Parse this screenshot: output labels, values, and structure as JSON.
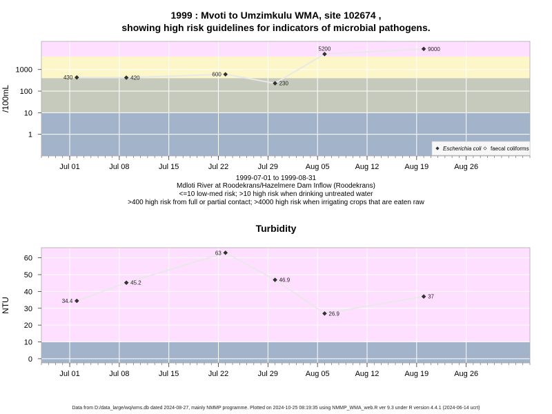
{
  "header": {
    "title_line1": "1999 : Mvoti to Umzimkulu WMA, site 102674 ,",
    "title_line2": "showing high risk guidelines for indicators of microbial pathogens."
  },
  "captions": {
    "line1": "1999-07-01 to 1999-08-31",
    "line2": "Mdloti River at Roodekrans/Hazelmere Dam Inflow (Roodekrans)",
    "line3": "<=10 low-med risk; >10 high risk when drinking untreated water",
    "line4": ">400 high risk from full or partial contact; >4000 high risk when irrigating crops that are eaten raw"
  },
  "footer": {
    "text": "Data from D:/data_large/wq/wms.db dated 2024-08-27, mainly NMMP programme. Plotted on 2024-10-25 08:19:35 using NMMP_WMA_web.R ver 9.3 under R version 4.4.1 (2024-06-14 ucrt)"
  },
  "colors": {
    "band_pink": "#ffdfff",
    "band_yellow": "#fcf6c8",
    "band_green": "#c5cabd",
    "band_blue": "#a3b3c9",
    "grid": "#ffffff",
    "line": "#e8e8e8",
    "point": "#333333"
  },
  "chart_data": [
    {
      "type": "line",
      "title": "",
      "xlabel": "",
      "ylabel": "/100mL",
      "y_scale": "log10",
      "ylim": [
        0.1,
        20000
      ],
      "xlim": [
        "1999-06-27",
        "1999-09-04"
      ],
      "x_ticks": [
        "Jul 01",
        "Jul 08",
        "Jul 15",
        "Jul 22",
        "Jul 29",
        "Aug 05",
        "Aug 12",
        "Aug 19",
        "Aug 26"
      ],
      "x_tick_dates": [
        "1999-07-01",
        "1999-07-08",
        "1999-07-15",
        "1999-07-22",
        "1999-07-29",
        "1999-08-05",
        "1999-08-12",
        "1999-08-19",
        "1999-08-26"
      ],
      "y_ticks": [
        "1",
        "10",
        "100",
        "1000"
      ],
      "y_tick_values": [
        1,
        10,
        100,
        1000
      ],
      "bands": [
        {
          "from": 0.1,
          "to": 10,
          "color_key": "band_blue"
        },
        {
          "from": 10,
          "to": 400,
          "color_key": "band_green"
        },
        {
          "from": 400,
          "to": 4000,
          "color_key": "band_yellow"
        },
        {
          "from": 4000,
          "to": 20000,
          "color_key": "band_pink"
        }
      ],
      "series": [
        {
          "name": "Escherichia coli",
          "x": [
            "1999-07-02",
            "1999-07-09",
            "1999-07-23",
            "1999-07-30",
            "1999-08-06",
            "1999-08-20"
          ],
          "values": [
            430,
            420,
            600,
            230,
            5200,
            9000
          ],
          "labels": [
            "430",
            "420",
            "600",
            "230",
            "5200",
            "9000"
          ]
        }
      ],
      "legend": {
        "placement": "bottom-right",
        "items": [
          {
            "label": "Escherichia coli",
            "marker": "filled-diamond"
          },
          {
            "label": "faecal coliforms",
            "marker": "open-diamond"
          }
        ]
      },
      "grid": true
    },
    {
      "type": "line",
      "title": "Turbidity",
      "xlabel": "",
      "ylabel": "NTU",
      "ylim": [
        -2.5,
        66
      ],
      "xlim": [
        "1999-06-27",
        "1999-09-04"
      ],
      "x_ticks": [
        "Jul 01",
        "Jul 08",
        "Jul 15",
        "Jul 22",
        "Jul 29",
        "Aug 05",
        "Aug 12",
        "Aug 19",
        "Aug 26"
      ],
      "x_tick_dates": [
        "1999-07-01",
        "1999-07-08",
        "1999-07-15",
        "1999-07-22",
        "1999-07-29",
        "1999-08-05",
        "1999-08-12",
        "1999-08-19",
        "1999-08-26"
      ],
      "y_ticks": [
        "0",
        "10",
        "20",
        "30",
        "40",
        "50",
        "60"
      ],
      "y_tick_values": [
        0,
        10,
        20,
        30,
        40,
        50,
        60
      ],
      "bands": [
        {
          "from": -2.5,
          "to": 10,
          "color_key": "band_blue"
        },
        {
          "from": 10,
          "to": 66,
          "color_key": "band_pink"
        }
      ],
      "series": [
        {
          "x": [
            "1999-07-02",
            "1999-07-09",
            "1999-07-23",
            "1999-07-30",
            "1999-08-06",
            "1999-08-20"
          ],
          "values": [
            34.4,
            45.2,
            63,
            46.9,
            26.9,
            37
          ],
          "labels": [
            "34.4",
            "45.2",
            "63",
            "46.9",
            "26.9",
            "37"
          ]
        }
      ],
      "grid": true
    }
  ]
}
